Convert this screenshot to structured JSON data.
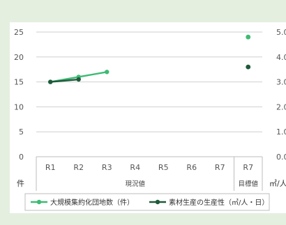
{
  "chart_data": {
    "type": "line",
    "categories": [
      "R1",
      "R2",
      "R3",
      "R4",
      "R5",
      "R6",
      "R7",
      "R7"
    ],
    "category_groups": [
      {
        "label": "現況値",
        "span": [
          0,
          6
        ]
      },
      {
        "label": "目標値",
        "span": [
          7,
          7
        ]
      }
    ],
    "y_left": {
      "unit": "件",
      "ticks": [
        "0",
        "5",
        "10",
        "15",
        "20",
        "25"
      ],
      "range": [
        0,
        25
      ]
    },
    "y_right": {
      "unit": "㎥/人日",
      "ticks": [
        "0.0",
        "1.0",
        "2.0",
        "3.0",
        "4.0",
        "5.0"
      ],
      "range": [
        0,
        5
      ]
    },
    "series": [
      {
        "name": "大規模集約化団地数（件）",
        "axis": "left",
        "color": "#3dbb74",
        "values": [
          15,
          16,
          17,
          null,
          null,
          null,
          null,
          24
        ],
        "target_separate": true
      },
      {
        "name": "素材生産の生産性（㎥/人・日）",
        "axis": "right",
        "color": "#1f5a3a",
        "values": [
          3.0,
          3.1,
          null,
          null,
          null,
          null,
          null,
          3.6
        ],
        "target_separate": true
      }
    ],
    "grid": true,
    "legend_position": "bottom"
  }
}
